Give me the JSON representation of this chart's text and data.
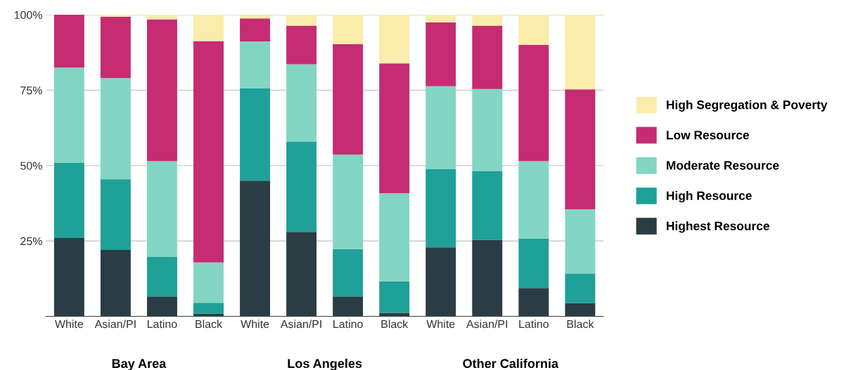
{
  "chart_data": {
    "type": "bar",
    "stacked": true,
    "categories": [
      "White",
      "Asian/PI",
      "Latino",
      "Black",
      "White",
      "Asian/PI",
      "Latino",
      "Black",
      "White",
      "Asian/PI",
      "Latino",
      "Black"
    ],
    "series": [
      {
        "name": "Highest Resource",
        "color": "#2a3d45",
        "values": [
          26,
          22,
          6.6,
          0.9,
          45,
          28,
          6.6,
          1.2,
          22.9,
          25.4,
          9.4,
          4.4
        ]
      },
      {
        "name": "High Resource",
        "color": "#1fa098",
        "values": [
          25,
          23.5,
          13.1,
          3.6,
          30.6,
          29.9,
          15.7,
          10.4,
          26,
          22.8,
          16.4,
          9.7
        ]
      },
      {
        "name": "Moderate Resource",
        "color": "#82d6c3",
        "values": [
          31.5,
          33.5,
          31.8,
          13.4,
          15.6,
          25.7,
          31.3,
          29.2,
          27.4,
          27.2,
          25.7,
          21.4
        ]
      },
      {
        "name": "Low Resource",
        "color": "#c52c72",
        "values": [
          17.5,
          20.4,
          47,
          73.4,
          7.6,
          12.8,
          36.7,
          43.1,
          21.2,
          21,
          38.5,
          39.8
        ]
      },
      {
        "name": "High Segregation & Poverty",
        "color": "#faecaa",
        "values": [
          0,
          0.7,
          1.5,
          8.7,
          1.1,
          3.6,
          9.7,
          16.1,
          2.5,
          3.6,
          10,
          24.7
        ]
      }
    ],
    "ylim": [
      0,
      100
    ],
    "yticks": [
      {
        "value": 25,
        "label": "25%"
      },
      {
        "value": 50,
        "label": "50%"
      },
      {
        "value": 75,
        "label": "75%"
      },
      {
        "value": 100,
        "label": "100%"
      }
    ],
    "grid": "y",
    "legend": "right",
    "annotations": [
      "Bay Area",
      "Los Angeles",
      "Other California"
    ]
  }
}
